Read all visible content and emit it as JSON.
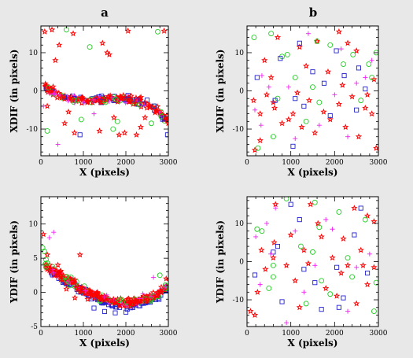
{
  "figure": {
    "panel_labels": [
      "a",
      "b"
    ],
    "background": "#e8e8e8",
    "plot_background": "#ffffff"
  },
  "colors": {
    "red_star": "#ff0000",
    "green_circle": "#22cc22",
    "blue_square": "#2222cc",
    "magenta_plus": "#ee22ee"
  },
  "chart_data": [
    {
      "id": "a-top",
      "column": "a",
      "type": "scatter",
      "xlabel": "X (pixels)",
      "ylabel": "XDIF (in pixels)",
      "xlim": [
        0,
        3000
      ],
      "ylim": [
        -17,
        17
      ],
      "xticks": [
        0,
        1000,
        2000,
        3000
      ],
      "yticks": [
        -10,
        0,
        10
      ],
      "trend": {
        "kind": "cubic",
        "anchors": [
          [
            0,
            2.2
          ],
          [
            1000,
            -2.4
          ],
          [
            2000,
            -2.2
          ],
          [
            3000,
            -8.0
          ]
        ],
        "spread": 0.9
      },
      "trend_markers": [
        "red_star",
        "red_star",
        "red_star",
        "green_circle",
        "magenta_plus",
        "blue_square"
      ],
      "trend_count": 260,
      "outliers": {
        "red_star": [
          [
            90,
            15.5
          ],
          [
            260,
            16
          ],
          [
            430,
            12
          ],
          [
            760,
            15
          ],
          [
            1450,
            12.5
          ],
          [
            1560,
            10
          ],
          [
            1610,
            9.5
          ],
          [
            2050,
            15.7
          ],
          [
            2900,
            15.7
          ],
          [
            340,
            8
          ],
          [
            230,
            0.5
          ],
          [
            650,
            -5.5
          ],
          [
            790,
            -11
          ],
          [
            1380,
            -10.5
          ],
          [
            1720,
            -7
          ],
          [
            1970,
            -11
          ],
          [
            2250,
            -11.5
          ],
          [
            2450,
            -7
          ],
          [
            150,
            -4
          ],
          [
            560,
            -8.5
          ],
          [
            1840,
            -11.5
          ],
          [
            2350,
            -9.5
          ]
        ],
        "green_circle": [
          [
            600,
            16
          ],
          [
            1150,
            11.5
          ],
          [
            2750,
            15.5
          ],
          [
            150,
            -10.5
          ],
          [
            1700,
            -10
          ],
          [
            1800,
            -8
          ],
          [
            950,
            -7.5
          ],
          [
            2600,
            -8.5
          ]
        ],
        "blue_square": [
          [
            920,
            -11.5
          ],
          [
            2980,
            -11.5
          ],
          [
            2050,
            -1.2
          ]
        ],
        "magenta_plus": [
          [
            400,
            -14
          ],
          [
            60,
            -4
          ],
          [
            1250,
            -6
          ]
        ]
      }
    },
    {
      "id": "b-top",
      "column": "b",
      "type": "scatter",
      "xlabel": "X (pixels)",
      "ylabel": "XDIF (in pixels)",
      "xlim": [
        0,
        3000
      ],
      "ylim": [
        -17,
        17
      ],
      "xticks": [
        0,
        1000,
        2000,
        3000
      ],
      "yticks": [
        -10,
        0,
        10
      ],
      "points": {
        "red_star": [
          [
            150,
            -2.5
          ],
          [
            300,
            -6
          ],
          [
            450,
            -1
          ],
          [
            630,
            -4.5
          ],
          [
            800,
            -8.5
          ],
          [
            950,
            -7.5
          ],
          [
            1150,
            -0.5
          ],
          [
            1250,
            -9.5
          ],
          [
            1420,
            -2.5
          ],
          [
            1550,
            -11
          ],
          [
            1750,
            -5.5
          ],
          [
            1900,
            -7.5
          ],
          [
            2100,
            -3.5
          ],
          [
            2250,
            -9.5
          ],
          [
            2400,
            -1.5
          ],
          [
            2550,
            -12
          ],
          [
            2700,
            -4.5
          ],
          [
            2850,
            -6
          ],
          [
            2950,
            -15
          ],
          [
            2300,
            12.5
          ],
          [
            2100,
            15.5
          ],
          [
            1200,
            11.5
          ],
          [
            400,
            8
          ],
          [
            1600,
            13
          ],
          [
            2500,
            10.5
          ],
          [
            700,
            14
          ],
          [
            2900,
            3
          ],
          [
            180,
            -15.5
          ],
          [
            1350,
            6.5
          ],
          [
            1850,
            5
          ],
          [
            2750,
            -1
          ],
          [
            550,
            3.5
          ],
          [
            600,
            -3
          ],
          [
            1050,
            -6
          ],
          [
            2180,
            1.5
          ],
          [
            300,
            -13
          ]
        ],
        "green_circle": [
          [
            160,
            14
          ],
          [
            550,
            15
          ],
          [
            920,
            9.5
          ],
          [
            1600,
            13
          ],
          [
            2420,
            9.5
          ],
          [
            2950,
            10
          ],
          [
            1100,
            3.5
          ],
          [
            1650,
            -3
          ],
          [
            2200,
            7
          ],
          [
            700,
            -2
          ],
          [
            1900,
            12
          ],
          [
            1350,
            -8
          ],
          [
            2600,
            -2.5
          ],
          [
            250,
            -15
          ],
          [
            600,
            -12
          ],
          [
            2780,
            7
          ],
          [
            2850,
            3.5
          ],
          [
            800,
            9
          ],
          [
            1500,
            1
          ]
        ],
        "blue_square": [
          [
            230,
            3.5
          ],
          [
            760,
            8.5
          ],
          [
            1200,
            12.5
          ],
          [
            1500,
            5
          ],
          [
            2040,
            10.5
          ],
          [
            2550,
            6
          ],
          [
            1760,
            2
          ],
          [
            1100,
            -2
          ],
          [
            1300,
            -4
          ],
          [
            2220,
            4
          ],
          [
            2700,
            0.5
          ],
          [
            640,
            -2.5
          ],
          [
            1050,
            -14.5
          ],
          [
            1900,
            -6.5
          ],
          [
            2500,
            -5
          ]
        ],
        "magenta_plus": [
          [
            180,
            -5
          ],
          [
            340,
            4
          ],
          [
            500,
            1
          ],
          [
            1400,
            15
          ],
          [
            2000,
            -1
          ],
          [
            2700,
            3.5
          ],
          [
            2300,
            -12
          ],
          [
            1100,
            -12.5
          ],
          [
            950,
            1
          ],
          [
            2150,
            11
          ],
          [
            2850,
            8
          ],
          [
            1650,
            -9
          ],
          [
            320,
            -9
          ],
          [
            2500,
            2
          ]
        ]
      }
    },
    {
      "id": "a-bottom",
      "column": "a",
      "type": "scatter",
      "xlabel": "X (pixels)",
      "ylabel": "YDIF (in pixels)",
      "xlim": [
        0,
        3000
      ],
      "ylim": [
        -5,
        14
      ],
      "xticks": [
        0,
        1000,
        2000,
        3000
      ],
      "yticks": [
        -5,
        0,
        5,
        10
      ],
      "trend": {
        "kind": "cubic",
        "anchors": [
          [
            0,
            4.4
          ],
          [
            1000,
            0.5
          ],
          [
            2000,
            -1.5
          ],
          [
            3000,
            1.2
          ]
        ],
        "spread": 0.5
      },
      "trend_markers": [
        "red_star",
        "red_star",
        "red_star",
        "green_circle",
        "magenta_plus"
      ],
      "trend_count": 300,
      "band": {
        "marker": "blue_square",
        "count": 120,
        "offset": -0.5,
        "spread": 0.45
      },
      "outliers": {
        "red_star": [
          [
            60,
            8.5
          ],
          [
            920,
            5.5
          ],
          [
            200,
            3.2
          ],
          [
            400,
            4
          ],
          [
            150,
            5.5
          ],
          [
            2950,
            2
          ],
          [
            600,
            0.5
          ],
          [
            800,
            -0.8
          ],
          [
            1100,
            -1
          ]
        ],
        "green_circle": [
          [
            40,
            6.5
          ],
          [
            80,
            6
          ],
          [
            120,
            4.8
          ],
          [
            2800,
            2.5
          ]
        ],
        "magenta_plus": [
          [
            300,
            8.8
          ],
          [
            200,
            8
          ],
          [
            2650,
            2.2
          ],
          [
            2400,
            -0.2
          ]
        ],
        "blue_square": [
          [
            1750,
            -3
          ],
          [
            1500,
            -2.8
          ],
          [
            2000,
            -2.9
          ],
          [
            1250,
            -2.3
          ]
        ]
      }
    },
    {
      "id": "b-bottom",
      "column": "b",
      "type": "scatter",
      "xlabel": "X (pixels)",
      "ylabel": "YDIF (in pixels)",
      "xlim": [
        0,
        3000
      ],
      "ylim": [
        -17,
        17
      ],
      "xticks": [
        0,
        1000,
        2000,
        3000
      ],
      "yticks": [
        -10,
        0,
        10
      ],
      "points": {
        "red_star": [
          [
            80,
            -13
          ],
          [
            240,
            -8
          ],
          [
            420,
            -2
          ],
          [
            620,
            5
          ],
          [
            900,
            -1
          ],
          [
            1100,
            -5
          ],
          [
            1300,
            3
          ],
          [
            1450,
            15
          ],
          [
            1620,
            10
          ],
          [
            1800,
            -7
          ],
          [
            1950,
            1
          ],
          [
            2150,
            -3
          ],
          [
            2300,
            -1
          ],
          [
            2450,
            14
          ],
          [
            2600,
            3
          ],
          [
            2750,
            -6
          ],
          [
            2900,
            10.5
          ],
          [
            2900,
            -1.5
          ],
          [
            650,
            15
          ],
          [
            1000,
            7
          ],
          [
            2200,
            6
          ],
          [
            2750,
            12
          ],
          [
            1200,
            -12
          ],
          [
            2500,
            -11
          ],
          [
            330,
            3
          ],
          [
            1700,
            6.5
          ],
          [
            600,
            1
          ],
          [
            2050,
            -9
          ],
          [
            180,
            -14
          ],
          [
            1400,
            -0.5
          ],
          [
            2650,
            -1
          ]
        ],
        "green_circle": [
          [
            230,
            8.5
          ],
          [
            600,
            -1
          ],
          [
            900,
            16.5
          ],
          [
            1350,
            -11
          ],
          [
            1500,
            2.5
          ],
          [
            1700,
            -5
          ],
          [
            1900,
            -8.5
          ],
          [
            2400,
            -4
          ],
          [
            2900,
            -13
          ],
          [
            2950,
            -5.5
          ],
          [
            1650,
            9
          ],
          [
            340,
            8
          ],
          [
            2700,
            11
          ],
          [
            500,
            -7
          ],
          [
            1230,
            4
          ],
          [
            2100,
            13
          ],
          [
            1550,
            15.5
          ],
          [
            2300,
            1
          ],
          [
            600,
            -4
          ]
        ],
        "blue_square": [
          [
            180,
            -3.5
          ],
          [
            700,
            4
          ],
          [
            800,
            -10.5
          ],
          [
            1000,
            15
          ],
          [
            1200,
            11
          ],
          [
            1300,
            -2
          ],
          [
            1550,
            -5.5
          ],
          [
            2050,
            -1.5
          ],
          [
            2200,
            -9.5
          ],
          [
            2450,
            7
          ],
          [
            2600,
            14
          ],
          [
            2750,
            -3
          ],
          [
            1700,
            -12.5
          ],
          [
            600,
            2.5
          ],
          [
            2100,
            -12
          ]
        ],
        "magenta_plus": [
          [
            200,
            6.5
          ],
          [
            540,
            2
          ],
          [
            300,
            -6
          ],
          [
            1100,
            8
          ],
          [
            1300,
            -8
          ],
          [
            1800,
            11
          ],
          [
            1950,
            8.5
          ],
          [
            2500,
            -1.5
          ],
          [
            2800,
            2
          ],
          [
            650,
            14
          ],
          [
            1550,
            -1
          ],
          [
            2300,
            -13
          ],
          [
            900,
            -16
          ],
          [
            450,
            10
          ]
        ]
      }
    }
  ]
}
